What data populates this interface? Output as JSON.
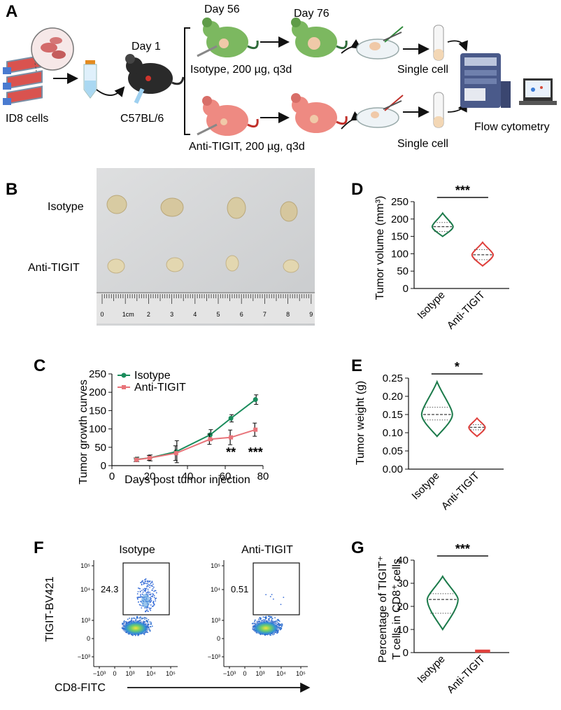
{
  "panels": {
    "A": "A",
    "B": "B",
    "C": "C",
    "D": "D",
    "E": "E",
    "F": "F",
    "G": "G"
  },
  "panelA": {
    "cells_label": "ID8 cells",
    "mouse_strain": "C57BL/6",
    "day1": "Day 1",
    "day56": "Day 56",
    "day76": "Day 76",
    "isotype_dose": "Isotype, 200 µg, q3d",
    "antitigit_dose": "Anti-TIGIT, 200 µg, q3d",
    "single_cell_1": "Single cell",
    "single_cell_2": "Single cell",
    "flow": "Flow cytometry"
  },
  "panelB": {
    "row1": "Isotype",
    "row2": "Anti-TIGIT",
    "ruler_labels": [
      "0",
      "1cm",
      "2",
      "3",
      "4",
      "5",
      "6",
      "7",
      "8",
      "9"
    ]
  },
  "colors": {
    "isotype": "#1a8c5c",
    "antitigit": "#e8747a",
    "violin_isotype": "#1b7a4a",
    "violin_anti": "#e0403c",
    "mouse_green": "#7cb860",
    "mouse_pink": "#ee8a82"
  },
  "panelF": {
    "title_iso": "Isotype",
    "title_anti": "Anti-TIGIT",
    "ylabel": "TIGIT-BV421",
    "xlabel": "CD8-FITC",
    "gate_iso": "24.3",
    "gate_anti": "0.51"
  },
  "chart_data": [
    {
      "id": "C",
      "type": "line",
      "xlabel": "Days post tumor injection",
      "ylabel": "Tumor growth curves",
      "xlim": [
        0,
        80
      ],
      "ylim": [
        0,
        250
      ],
      "xticks": [
        0,
        20,
        40,
        60,
        80
      ],
      "yticks": [
        0,
        50,
        100,
        150,
        200,
        250
      ],
      "legend": "top-left",
      "series": [
        {
          "name": "Isotype",
          "x": [
            13,
            20,
            34,
            52,
            63,
            76
          ],
          "y": [
            17,
            21,
            38,
            84,
            129,
            180
          ],
          "err": [
            6,
            8,
            30,
            14,
            10,
            13
          ]
        },
        {
          "name": "Anti-TIGIT",
          "x": [
            13,
            20,
            34,
            52,
            63,
            76
          ],
          "y": [
            16,
            21,
            34,
            72,
            77,
            98
          ],
          "err": [
            5,
            7,
            20,
            14,
            20,
            18
          ]
        }
      ],
      "annotations": [
        {
          "x": 63,
          "text": "**"
        },
        {
          "x": 76,
          "text": "***"
        }
      ]
    },
    {
      "id": "D",
      "type": "violin",
      "ylabel": "Tumor volume (mm³)",
      "ylim": [
        0,
        250
      ],
      "yticks": [
        0,
        50,
        100,
        150,
        200,
        250
      ],
      "categories": [
        "Isotype",
        "Anti-TIGIT"
      ],
      "groups": [
        {
          "name": "Isotype",
          "min": 150,
          "max": 217,
          "median": 178,
          "q1": 164,
          "q3": 190
        },
        {
          "name": "Anti-TIGIT",
          "min": 65,
          "max": 133,
          "median": 97,
          "q1": 83,
          "q3": 112
        }
      ],
      "significance": "***"
    },
    {
      "id": "E",
      "type": "violin",
      "ylabel": "Tumor weight (g)",
      "ylim": [
        0,
        0.25
      ],
      "yticks": [
        0.0,
        0.05,
        0.1,
        0.15,
        0.2,
        0.25
      ],
      "categories": [
        "Isotype",
        "Anti-TIGIT"
      ],
      "groups": [
        {
          "name": "Isotype",
          "min": 0.09,
          "max": 0.24,
          "median": 0.15,
          "q1": 0.135,
          "q3": 0.17
        },
        {
          "name": "Anti-TIGIT",
          "min": 0.09,
          "max": 0.14,
          "median": 0.115,
          "q1": 0.108,
          "q3": 0.122
        }
      ],
      "significance": "*"
    },
    {
      "id": "G",
      "type": "violin",
      "ylabel_line1": "Percentage of TIGIT⁺",
      "ylabel_line2": "T cells in CD8⁺ cells",
      "ylim": [
        0,
        40
      ],
      "yticks": [
        0,
        10,
        20,
        30,
        40
      ],
      "categories": [
        "Isotype",
        "Anti-TIGIT"
      ],
      "groups": [
        {
          "name": "Isotype",
          "min": 10,
          "max": 33,
          "median": 23,
          "q1": 17,
          "q3": 25.5
        },
        {
          "name": "Anti-TIGIT",
          "min": 0.3,
          "max": 1.0,
          "median": 0.6,
          "q1": 0.5,
          "q3": 0.7
        }
      ],
      "significance": "***"
    }
  ],
  "flow_axis": {
    "y_ticks": [
      "10⁵",
      "10⁴",
      "10³",
      "0",
      "−10³"
    ],
    "x_ticks": [
      "−10³",
      "0",
      "10³",
      "10⁴",
      "10⁵"
    ]
  }
}
